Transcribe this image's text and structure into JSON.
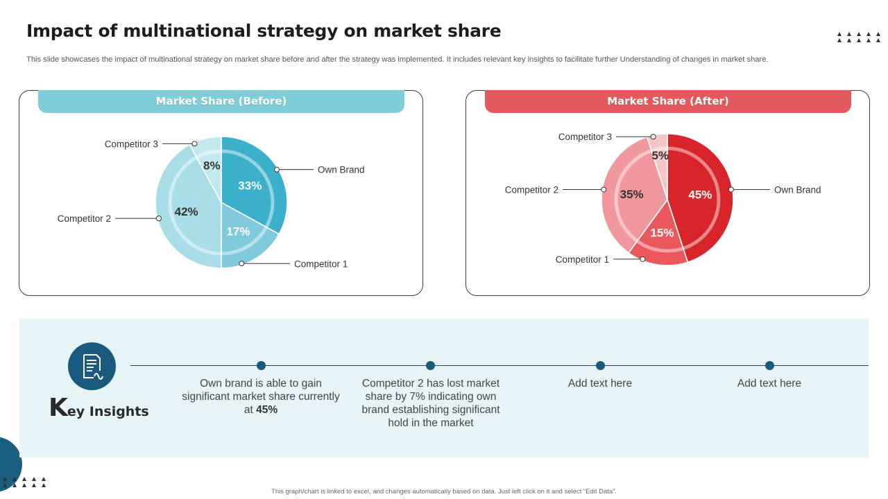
{
  "title": "Impact of multinational strategy on market share",
  "subtitle": "This slide showcases the impact of multinational strategy on market share before and after the strategy was implemented. It includes relevant key insights to facilitate further Understanding of changes in market share.",
  "chart_data": [
    {
      "type": "pie",
      "title": "Market Share (Before)",
      "categories": [
        "Own Brand",
        "Competitor 1",
        "Competitor 2",
        "Competitor 3"
      ],
      "values": [
        33,
        17,
        42,
        8
      ],
      "labels": [
        "33%",
        "17%",
        "42%",
        "8%"
      ],
      "colors": [
        "#3bb0cb",
        "#7fcbdb",
        "#a8dde8",
        "#c4e8f0"
      ]
    },
    {
      "type": "pie",
      "title": "Market Share (After)",
      "categories": [
        "Own Brand",
        "Competitor 1",
        "Competitor 2",
        "Competitor 3"
      ],
      "values": [
        45,
        15,
        35,
        5
      ],
      "labels": [
        "45%",
        "15%",
        "35%",
        "5%"
      ],
      "colors": [
        "#d8252b",
        "#e9585d",
        "#f0989b",
        "#f7c4c6"
      ]
    }
  ],
  "insights": {
    "letter": "K",
    "title_rest": "ey Insights",
    "item1_pre": "Own brand is able to gain significant market share currently  at ",
    "item1_bold": "45%",
    "item2": "Competitor 2 has lost market share by 7% indicating own brand establishing significant hold in the market",
    "item3": "Add text here",
    "item4": "Add text here"
  },
  "footer": "This graph/chart is linked to excel, and changes automatically based on data. Just left click on it and select “Edit Data”.",
  "colors": {
    "primary": "#1a5a7e",
    "before_accent": "#7fcdd9",
    "after_accent": "#e35a5e",
    "insights_bg": "#e6f4f8"
  },
  "icons": {
    "insights": "document-checklist-icon",
    "decoration": "triangle-pattern"
  }
}
